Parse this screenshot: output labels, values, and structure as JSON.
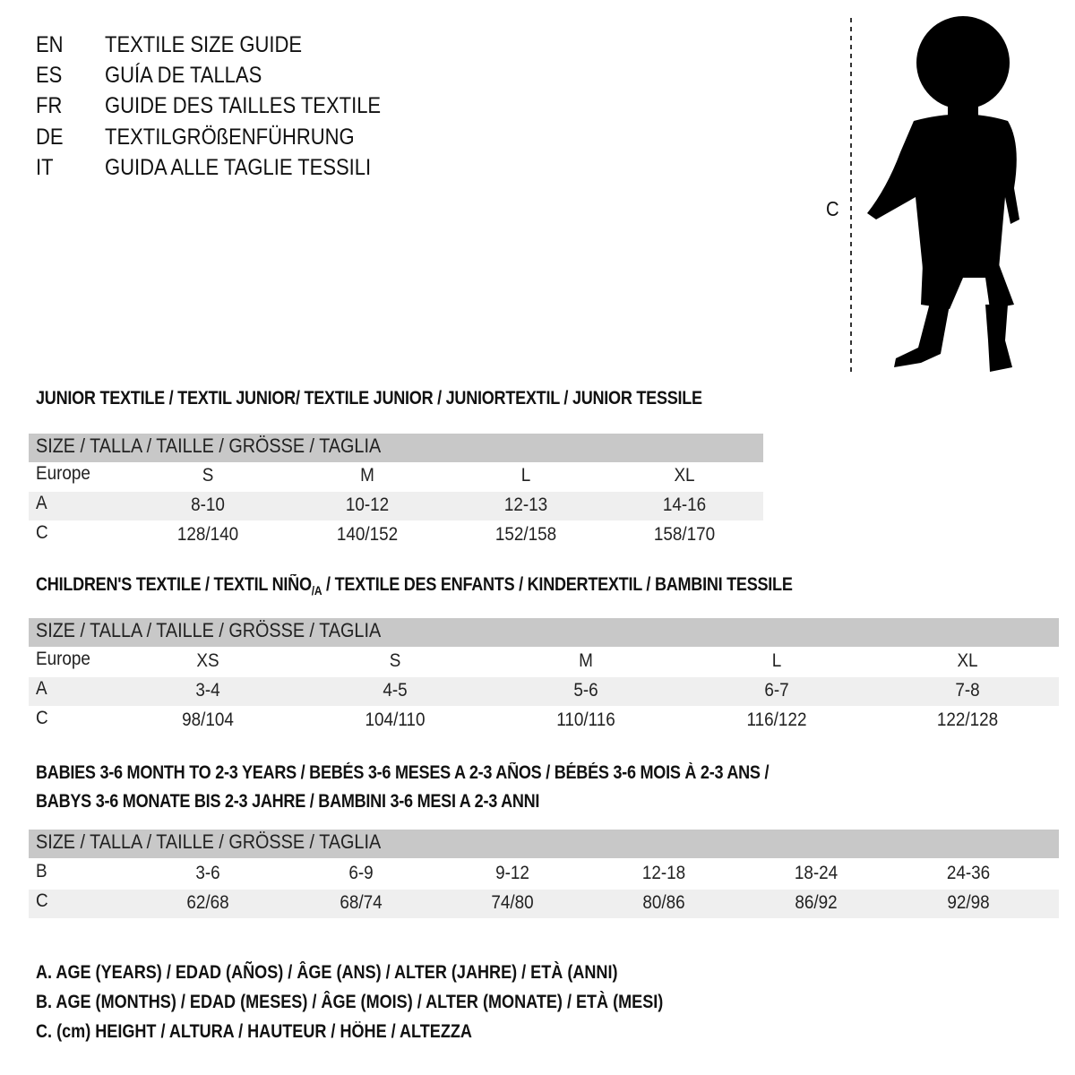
{
  "titles": [
    {
      "lang": "EN",
      "text": "TEXTILE SIZE GUIDE"
    },
    {
      "lang": "ES",
      "text": "GUÍA DE TALLAS"
    },
    {
      "lang": "FR",
      "text": "GUIDE DES TAILLES TEXTILE"
    },
    {
      "lang": "DE",
      "text": "TEXTILGRÖßENFÜHRUNG"
    },
    {
      "lang": "IT",
      "text": "GUIDA ALLE TAGLIE TESSILI"
    }
  ],
  "figure": {
    "measure_label": "C"
  },
  "junior": {
    "heading": "JUNIOR TEXTILE / TEXTIL JUNIOR/ TEXTILE JUNIOR / JUNIORTEXTIL / JUNIOR TESSILE",
    "header": "SIZE / TALLA / TAILLE / GRÖSSE / TAGLIA",
    "rows": [
      {
        "label": "Europe",
        "values": [
          "S",
          "M",
          "L",
          "XL"
        ]
      },
      {
        "label": "A",
        "values": [
          "8-10",
          "10-12",
          "12-13",
          "14-16"
        ]
      },
      {
        "label": "C",
        "values": [
          "128/140",
          "140/152",
          "152/158",
          "158/170"
        ]
      }
    ]
  },
  "children": {
    "heading_pre": "CHILDREN'S TEXTILE / TEXTIL NIÑO",
    "heading_sub": "/A",
    "heading_post": " / TEXTILE DES ENFANTS / KINDERTEXTIL / BAMBINI TESSILE",
    "header": "SIZE / TALLA / TAILLE / GRÖSSE / TAGLIA",
    "rows": [
      {
        "label": "Europe",
        "values": [
          "XS",
          "S",
          "M",
          "L",
          "XL"
        ]
      },
      {
        "label": "A",
        "values": [
          "3-4",
          "4-5",
          "5-6",
          "6-7",
          "7-8"
        ]
      },
      {
        "label": "C",
        "values": [
          "98/104",
          "104/110",
          "110/116",
          "116/122",
          "122/128"
        ]
      }
    ]
  },
  "babies": {
    "heading_line1": "BABIES 3-6 MONTH TO 2-3 YEARS / BEBÉS 3-6 MESES A 2-3 AÑOS / BÉBÉS 3-6 MOIS À 2-3 ANS /",
    "heading_line2": "BABYS 3-6 MONATE BIS 2-3 JAHRE / BAMBINI 3-6 MESI A 2-3 ANNI",
    "header": "SIZE / TALLA / TAILLE / GRÖSSE / TAGLIA",
    "rows": [
      {
        "label": "B",
        "values": [
          "3-6",
          "6-9",
          "9-12",
          "12-18",
          "18-24",
          "24-36"
        ]
      },
      {
        "label": "C",
        "values": [
          "62/68",
          "68/74",
          "74/80",
          "80/86",
          "86/92",
          "92/98"
        ]
      }
    ]
  },
  "legend": [
    "A. AGE (YEARS) / EDAD (AÑOS) / ÂGE (ANS) / ALTER (JAHRE) / ETÀ (ANNI)",
    "B. AGE (MONTHS) / EDAD (MESES) / ÂGE (MOIS) / ALTER (MONATE) / ETÀ (MESI)",
    "C. (cm) HEIGHT / ALTURA / HAUTEUR / HÖHE / ALTEZZA"
  ],
  "colors": {
    "header_bg": "#c8c8c8",
    "alt_row_bg": "#efefef"
  }
}
